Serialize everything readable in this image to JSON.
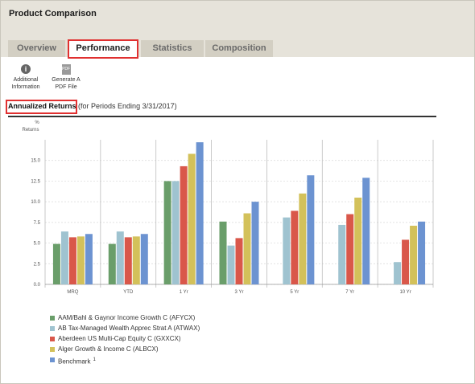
{
  "page": {
    "title": "Product Comparison"
  },
  "tabs": [
    {
      "label": "Overview"
    },
    {
      "label": "Performance"
    },
    {
      "label": "Statistics"
    },
    {
      "label": "Composition"
    }
  ],
  "toolbar": {
    "info": {
      "line1": "Additional",
      "line2": "Information",
      "icon": "info-icon"
    },
    "pdf": {
      "line1": "Generate A",
      "line2": "PDF File",
      "icon": "pdf-icon",
      "glyph": "PDF"
    }
  },
  "section": {
    "title": "Annualized Returns",
    "subtitle": "(for Periods Ending 3/31/2017)"
  },
  "colors": {
    "highlight": "#e03030",
    "series": [
      "#6a9e6a",
      "#9fc3d0",
      "#d9574a",
      "#d3c15a",
      "#6c93d1"
    ]
  },
  "chart_data": {
    "type": "bar",
    "ylabel_line1": "%",
    "ylabel_line2": "Returns",
    "ylim": [
      0,
      17.5
    ],
    "yticks": [
      0,
      2.5,
      5,
      7.5,
      10,
      12.5,
      15
    ],
    "ytick_labels": [
      "0.0",
      "2.5",
      "5.0",
      "7.5",
      "10.0",
      "12.5",
      "15.0"
    ],
    "grid": true,
    "categories": [
      "MRQ",
      "YTD",
      "1 Yr",
      "3 Yr",
      "5 Yr",
      "7 Yr",
      "10 Yr"
    ],
    "series": [
      {
        "name": "AAM/Bahl & Gaynor Income Growth C (AFYCX)",
        "values": [
          4.9,
          4.9,
          12.5,
          7.6,
          null,
          null,
          null
        ]
      },
      {
        "name": "AB Tax-Managed Wealth Apprec Strat A (ATWAX)",
        "values": [
          6.4,
          6.4,
          12.5,
          4.7,
          8.1,
          7.2,
          2.7
        ]
      },
      {
        "name": "Aberdeen US Multi-Cap Equity C (GXXCX)",
        "values": [
          5.7,
          5.7,
          14.3,
          5.6,
          8.9,
          8.5,
          5.4
        ]
      },
      {
        "name": "Alger Growth & Income C (ALBCX)",
        "values": [
          5.8,
          5.8,
          15.8,
          8.6,
          11.0,
          10.5,
          7.1
        ]
      },
      {
        "name": "Benchmark",
        "values": [
          6.1,
          6.1,
          17.2,
          10.0,
          13.2,
          12.9,
          7.6
        ]
      }
    ],
    "benchmark_footnote": "1"
  }
}
